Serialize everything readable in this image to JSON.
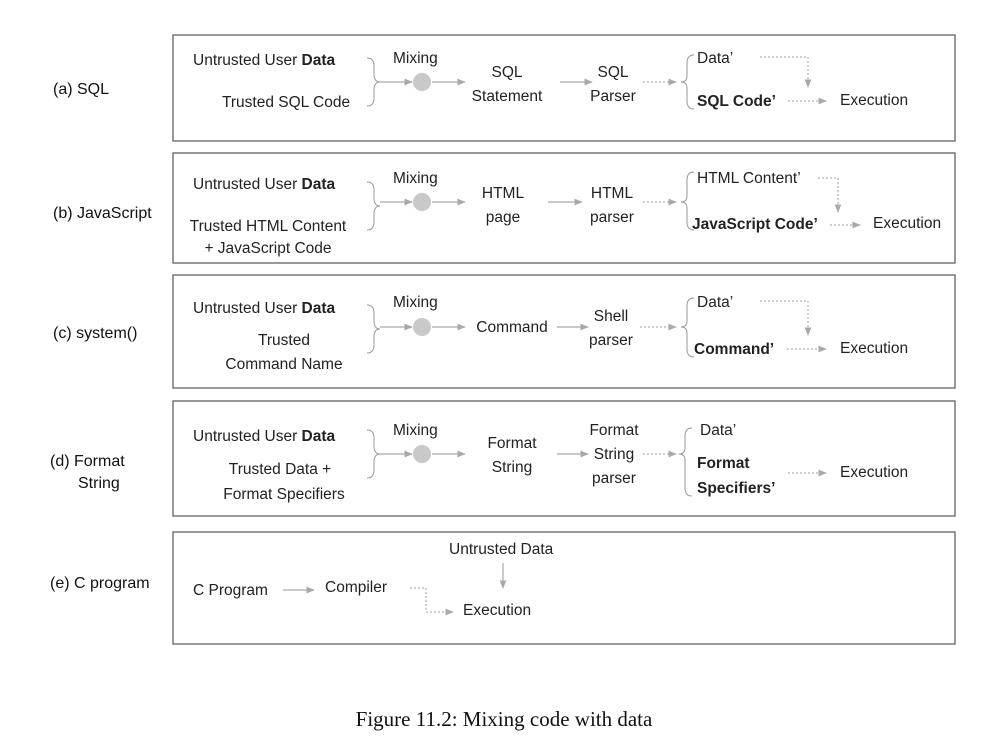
{
  "colors": {
    "arrow": "#a9a9a9",
    "mixing_node": "#c9c9c9",
    "box_border": "#555555",
    "text": "#222222"
  },
  "rows": [
    {
      "label": [
        "(a) SQL"
      ],
      "input1": {
        "plain": "Untrusted User ",
        "bold": "Data"
      },
      "input2": [
        "Trusted SQL Code"
      ],
      "mixing": "Mixing",
      "product": [
        "SQL",
        "Statement"
      ],
      "parser": [
        "SQL",
        "Parser"
      ],
      "out1": "Data’",
      "out2": [
        "SQL Code’"
      ],
      "execution": "Execution"
    },
    {
      "label": [
        "(b) JavaScript"
      ],
      "input1": {
        "plain": "Untrusted User ",
        "bold": "Data"
      },
      "input2": [
        "Trusted HTML Content",
        "+ JavaScript Code"
      ],
      "mixing": "Mixing",
      "product": [
        "HTML",
        "page"
      ],
      "parser": [
        "HTML",
        "parser"
      ],
      "out1": "HTML Content’",
      "out2": [
        "JavaScript Code’"
      ],
      "execution": "Execution"
    },
    {
      "label": [
        "(c) system()"
      ],
      "input1": {
        "plain": "Untrusted User ",
        "bold": "Data"
      },
      "input2": [
        "Trusted",
        "Command Name"
      ],
      "mixing": "Mixing",
      "product": [
        "Command"
      ],
      "parser": [
        "Shell",
        "parser"
      ],
      "out1": "Data’",
      "out2": [
        "Command’"
      ],
      "execution": "Execution"
    },
    {
      "label": [
        "(d) Format",
        "String"
      ],
      "input1": {
        "plain": "Untrusted User ",
        "bold": "Data"
      },
      "input2": [
        "Trusted Data +",
        "Format Specifiers"
      ],
      "mixing": "Mixing",
      "product": [
        "Format",
        "String"
      ],
      "parser": [
        "Format",
        "String",
        "parser"
      ],
      "out1": "Data’",
      "out2": [
        "Format",
        "Specifiers’"
      ],
      "execution": "Execution"
    }
  ],
  "row_e": {
    "label": "(e) C program",
    "source": "C Program",
    "compiler": "Compiler",
    "untrusted": "Untrusted Data",
    "execution": "Execution"
  },
  "caption": "Figure 11.2: Mixing code with data"
}
